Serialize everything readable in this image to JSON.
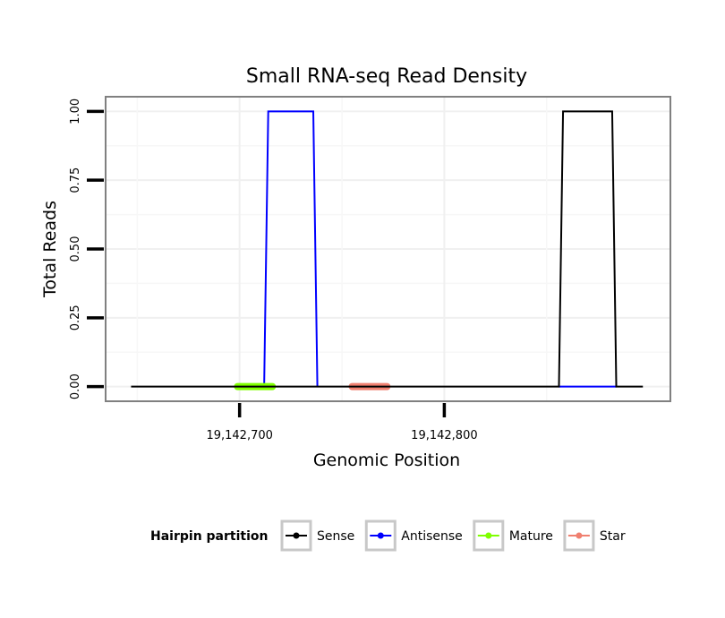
{
  "chart_data": {
    "type": "line",
    "title": "Small RNA-seq Read Density",
    "xlabel": "Genomic Position",
    "ylabel": "Total Reads",
    "xlim": [
      19142635,
      19142910
    ],
    "ylim": [
      -0.05,
      1.05
    ],
    "x_ticks": [
      19142700,
      19142800
    ],
    "x_tick_labels": [
      "19,142,700",
      "19,142,800"
    ],
    "y_ticks": [
      0,
      0.25,
      0.5,
      0.75,
      1.0
    ],
    "y_tick_labels": [
      "0.00",
      "0.25",
      "0.50",
      "0.75",
      "1.00"
    ],
    "grid": true,
    "series": [
      {
        "name": "Sense",
        "color": "#000000",
        "x": [
          19142647,
          19142856,
          19142858,
          19142882,
          19142884,
          19142897
        ],
        "y": [
          0,
          0,
          1,
          1,
          0,
          0
        ]
      },
      {
        "name": "Antisense",
        "color": "#0000ff",
        "x": [
          19142702,
          19142712,
          19142714,
          19142736,
          19142738
        ],
        "y": [
          0,
          0,
          1,
          1,
          0
        ]
      },
      {
        "name": "Antisense",
        "color": "#0000ff",
        "x": [
          19142856,
          19142884
        ],
        "y": [
          0,
          0
        ]
      }
    ],
    "segments": [
      {
        "name": "Mature",
        "color": "#7fff00",
        "x_start": 19142699,
        "x_end": 19142716,
        "y": 0
      },
      {
        "name": "Star",
        "color": "#f08070",
        "x_start": 19142755,
        "x_end": 19142772,
        "y": 0
      }
    ],
    "legend": {
      "title": "Hairpin partition",
      "position": "bottom",
      "entries": [
        {
          "label": "Sense",
          "color": "#000000"
        },
        {
          "label": "Antisense",
          "color": "#0000ff"
        },
        {
          "label": "Mature",
          "color": "#7fff00"
        },
        {
          "label": "Star",
          "color": "#f08070"
        }
      ]
    }
  }
}
